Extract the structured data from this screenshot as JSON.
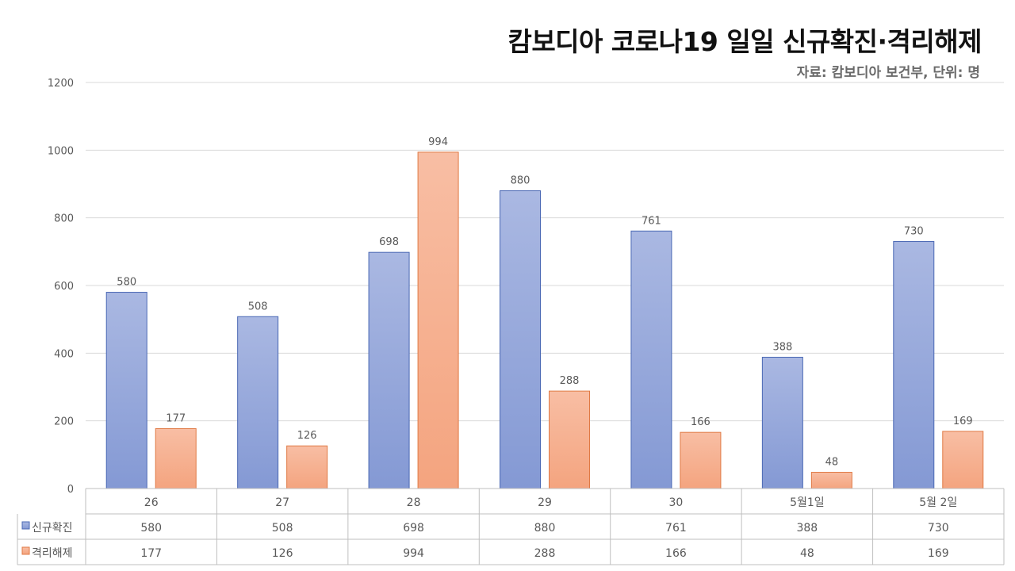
{
  "chart_data": {
    "type": "bar",
    "title": "캄보디아 코로나19 일일 신규확진·격리해제",
    "subtitle": "자료: 캄보디아 보건부, 단위: 명",
    "categories": [
      "26",
      "27",
      "28",
      "29",
      "30",
      "5월1일",
      "5월 2일"
    ],
    "series": [
      {
        "name": "신규확진",
        "values": [
          580,
          508,
          698,
          880,
          761,
          388,
          730
        ],
        "color": "#8ea2d8"
      },
      {
        "name": "격리해제",
        "values": [
          177,
          126,
          994,
          288,
          166,
          48,
          169
        ],
        "color": "#f5a784"
      }
    ],
    "ylim": [
      0,
      1200
    ],
    "yticks": [
      0,
      200,
      400,
      600,
      800,
      1000,
      1200
    ],
    "grid": true,
    "legend": "data-table",
    "data_labels": true,
    "data_table": true
  }
}
